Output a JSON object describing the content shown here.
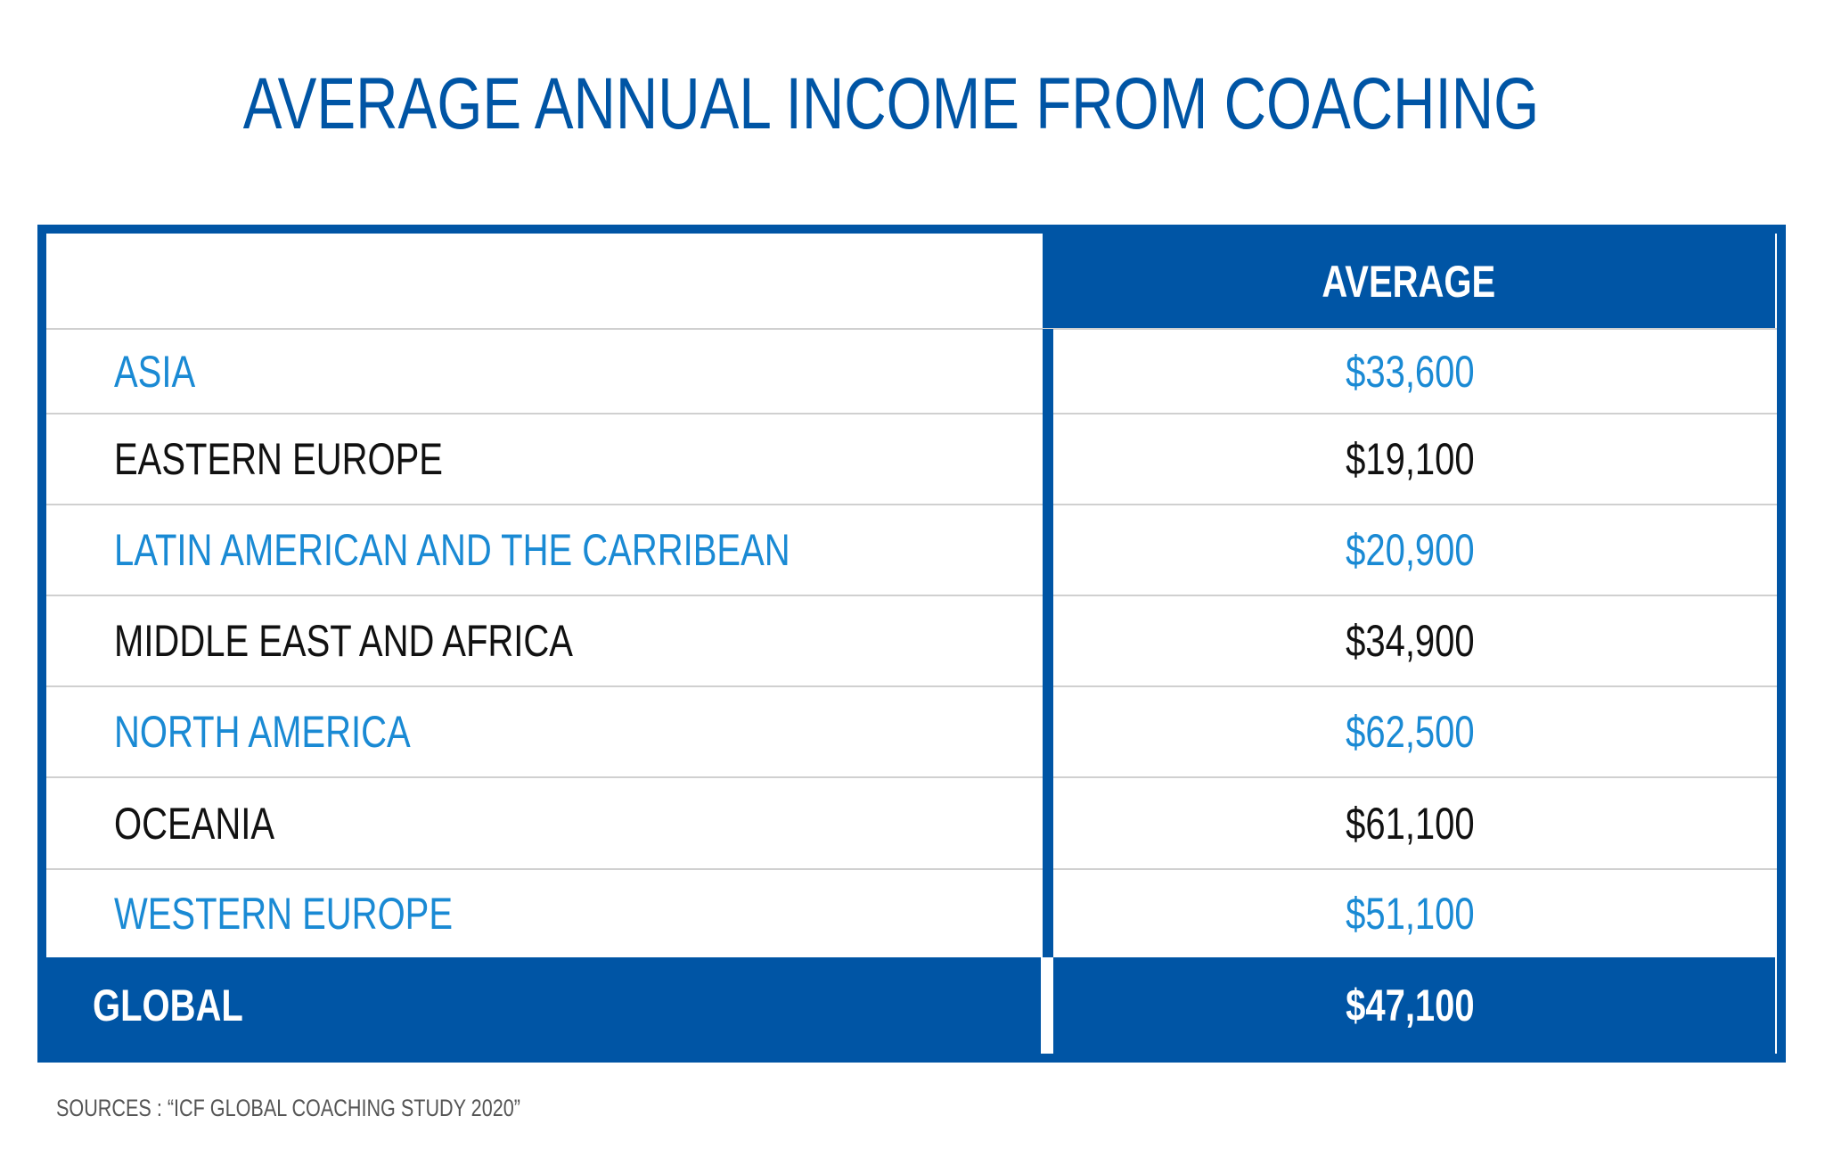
{
  "header": {
    "title": "AVERAGE ANNUAL INCOME FROM COACHING"
  },
  "table": {
    "column_header": "AVERAGE",
    "rows": [
      {
        "region": "ASIA",
        "value": "$33,600"
      },
      {
        "region": "EASTERN EUROPE",
        "value": "$19,100"
      },
      {
        "region": "LATIN AMERICAN AND THE CARRIBEAN",
        "value": "$20,900"
      },
      {
        "region": "MIDDLE EAST AND AFRICA",
        "value": "$34,900"
      },
      {
        "region": "NORTH AMERICA",
        "value": "$62,500"
      },
      {
        "region": "OCEANIA",
        "value": "$61,100"
      },
      {
        "region": "WESTERN EUROPE",
        "value": "$51,100"
      }
    ],
    "total": {
      "region": "GLOBAL",
      "value": "$47,100"
    }
  },
  "footer": {
    "source": "SOURCES : “ICF GLOBAL COACHING STUDY 2020”"
  }
}
